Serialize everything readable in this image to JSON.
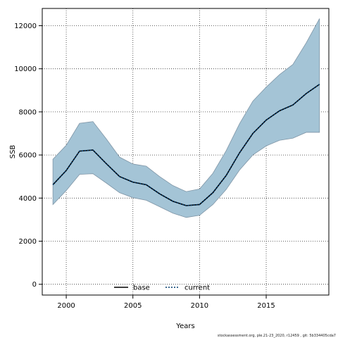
{
  "chart_data": {
    "type": "line",
    "xlabel": "Years",
    "ylabel": "SSB",
    "xlim": [
      1998.2,
      2019.7
    ],
    "ylim": [
      -500,
      12800
    ],
    "xticks": [
      2000,
      2005,
      2010,
      2015
    ],
    "yticks": [
      0,
      2000,
      4000,
      6000,
      8000,
      10000,
      12000
    ],
    "grid": true,
    "legend_position": "bottom-center",
    "x": [
      1999,
      2000,
      2001,
      2002,
      2003,
      2004,
      2005,
      2006,
      2007,
      2008,
      2009,
      2010,
      2011,
      2012,
      2013,
      2014,
      2015,
      2016,
      2017,
      2018,
      2019
    ],
    "series": [
      {
        "name": "base",
        "line_style": "solid",
        "color": "#000000",
        "values": [
          4620,
          5280,
          6180,
          6230,
          5600,
          5000,
          4740,
          4620,
          4200,
          3850,
          3650,
          3700,
          4250,
          5050,
          6100,
          7000,
          7620,
          8050,
          8320,
          8850,
          9280
        ]
      },
      {
        "name": "current",
        "line_style": "dotted",
        "color": "#003a6b",
        "values": [
          4620,
          5280,
          6180,
          6230,
          5600,
          5000,
          4740,
          4620,
          4200,
          3850,
          3650,
          3700,
          4250,
          5050,
          6100,
          7000,
          7620,
          8050,
          8320,
          8850,
          9280
        ]
      }
    ],
    "band": {
      "color": "#a4c4d6",
      "edge_color": "#7f95a6",
      "lower": [
        3700,
        4350,
        5100,
        5130,
        4700,
        4250,
        4020,
        3900,
        3600,
        3300,
        3100,
        3200,
        3700,
        4400,
        5300,
        6000,
        6420,
        6680,
        6780,
        7050,
        7050
      ],
      "upper": [
        5800,
        6450,
        7470,
        7550,
        6750,
        5900,
        5580,
        5480,
        5000,
        4580,
        4300,
        4420,
        5150,
        6200,
        7450,
        8500,
        9150,
        9730,
        10200,
        11200,
        12330
      ]
    },
    "footer": "stockassessment.org, ple.21-23_2020, r12459 , git: 5b334405cda7"
  }
}
